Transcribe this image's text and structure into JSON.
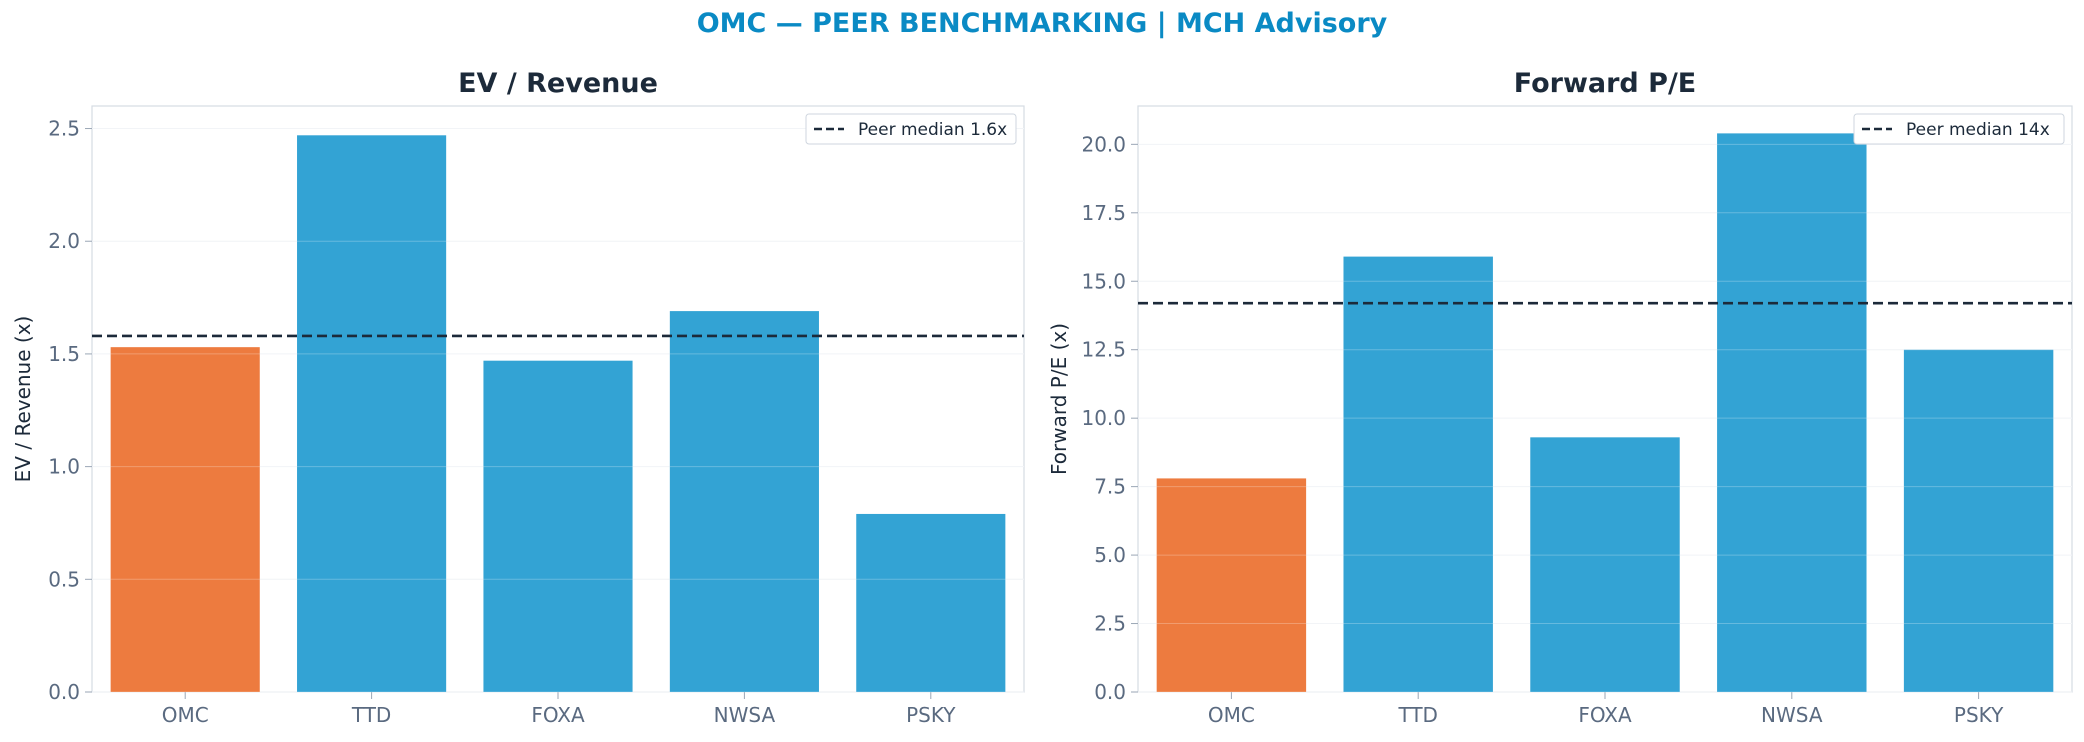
{
  "title": "OMC — PEER BENCHMARKING | MCH Advisory",
  "colors": {
    "highlight": "#ed7b3f",
    "peer": "#33a3d4",
    "median_line": "#1c2a3a",
    "title": "#0a8ac4"
  },
  "chart_data": [
    {
      "type": "bar",
      "title": "EV / Revenue",
      "ylabel": "EV / Revenue (x)",
      "categories": [
        "OMC",
        "TTD",
        "FOXA",
        "NWSA",
        "PSKY"
      ],
      "values": [
        1.53,
        2.47,
        1.47,
        1.69,
        0.79
      ],
      "highlight": "OMC",
      "ylim": [
        0,
        2.6
      ],
      "yticks": [
        0.0,
        0.5,
        1.0,
        1.5,
        2.0,
        2.5
      ],
      "ytick_labels": [
        "0.0",
        "0.5",
        "1.0",
        "1.5",
        "2.0",
        "2.5"
      ],
      "reference_line": {
        "value": 1.58,
        "label": "Peer median 1.6x"
      },
      "legend": "top-right",
      "grid": true
    },
    {
      "type": "bar",
      "title": "Forward P/E",
      "ylabel": "Forward P/E (x)",
      "categories": [
        "OMC",
        "TTD",
        "FOXA",
        "NWSA",
        "PSKY"
      ],
      "values": [
        7.8,
        15.9,
        9.3,
        20.4,
        12.5
      ],
      "highlight": "OMC",
      "ylim": [
        0,
        21.4
      ],
      "yticks": [
        0.0,
        2.5,
        5.0,
        7.5,
        10.0,
        12.5,
        15.0,
        17.5,
        20.0
      ],
      "ytick_labels": [
        "0.0",
        "2.5",
        "5.0",
        "7.5",
        "10.0",
        "12.5",
        "15.0",
        "17.5",
        "20.0"
      ],
      "reference_line": {
        "value": 14.2,
        "label": "Peer median 14x"
      },
      "legend": "top-right",
      "grid": true
    }
  ]
}
